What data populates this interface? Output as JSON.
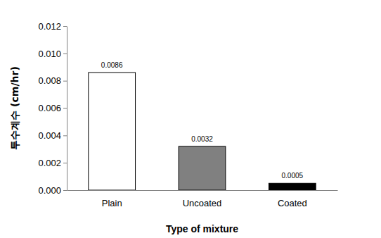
{
  "chart_data": {
    "type": "bar",
    "x_label": "Type of mixture",
    "y_label": "투수계수 (cm/hr)",
    "categories": [
      "Plain",
      "Uncoated",
      "Coated"
    ],
    "values": [
      0.0086,
      0.0032,
      0.0005
    ],
    "colors": [
      "#ffffff",
      "#808080",
      "#000000"
    ],
    "ylim": [
      0,
      0.012
    ],
    "yticks": [
      {
        "value": 0,
        "label": "0.000"
      },
      {
        "value": 0.002,
        "label": "0.002"
      },
      {
        "value": 0.004,
        "label": "0.004"
      },
      {
        "value": 0.006,
        "label": "0.006"
      },
      {
        "value": 0.008,
        "label": "0.008"
      },
      {
        "value": 0.01,
        "label": "0.010"
      },
      {
        "value": 0.012,
        "label": "0.012"
      }
    ],
    "grid": false,
    "data_labels": true
  }
}
